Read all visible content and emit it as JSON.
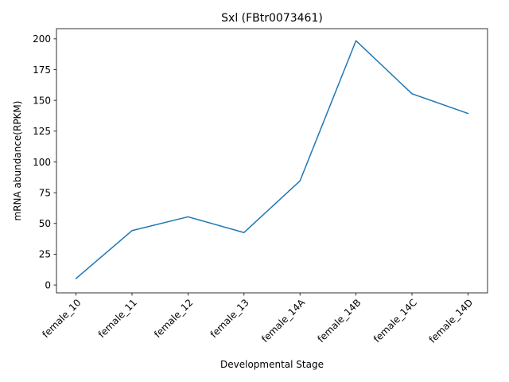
{
  "chart_data": {
    "type": "line",
    "title": "Sxl (FBtr0073461)",
    "xlabel": "Developmental Stage",
    "ylabel": "mRNA abundance(RPKM)",
    "categories": [
      "female_10",
      "female_11",
      "female_12",
      "female_13",
      "female_14A",
      "female_14B",
      "female_14C",
      "female_14D"
    ],
    "series": [
      {
        "values": [
          5.3,
          44.2,
          55.4,
          42.6,
          84.6,
          198.5,
          155.4,
          139.4
        ],
        "color": "#1f77b4"
      }
    ],
    "ylim": [
      -6.4,
      208.3
    ],
    "yticks": [
      0,
      25,
      50,
      75,
      100,
      125,
      150,
      175,
      200
    ],
    "grid": false,
    "legend": "none"
  }
}
